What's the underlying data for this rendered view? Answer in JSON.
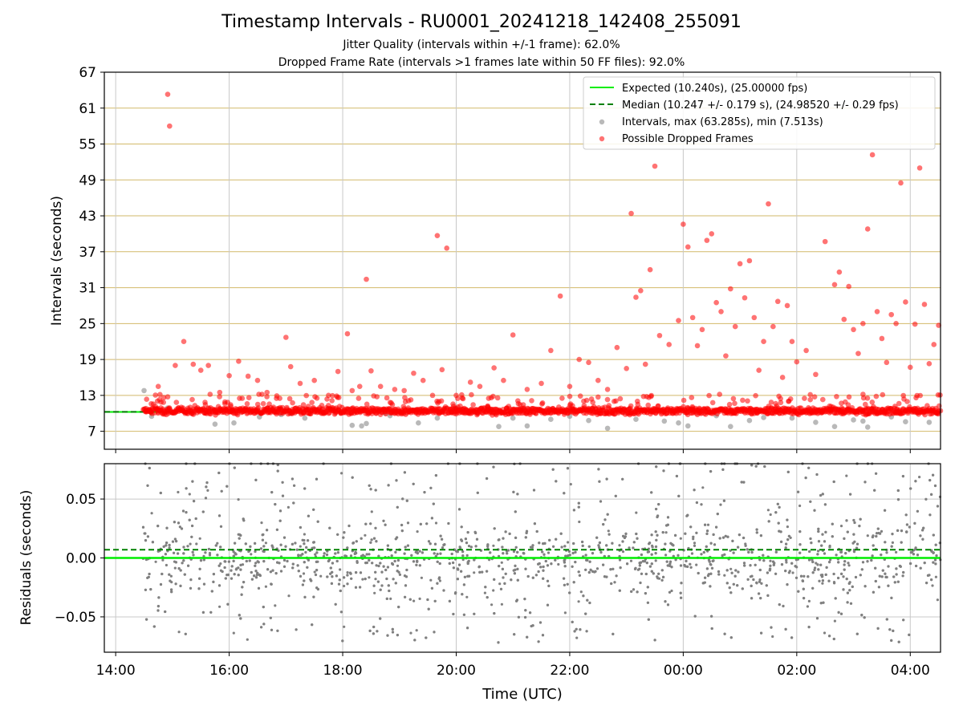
{
  "header": {
    "title": "Timestamp Intervals - RU0001_20241218_142408_255091",
    "subtitle_1": "Jitter Quality (intervals within +/-1 frame): 62.0%",
    "subtitle_2": "Dropped Frame Rate (intervals >1 frames late within 50 FF files): 92.0%"
  },
  "colors": {
    "expected": "#00ee00",
    "median": "#008000",
    "intervals": "#808080",
    "dropped": "#ff0000",
    "hgrid_top": "#d2b96a",
    "grid": "#c8c8c8"
  },
  "chart_data": [
    {
      "type": "scatter",
      "ylabel": "Intervals (seconds)",
      "ylim": [
        4,
        67
      ],
      "xlim": [
        "13:48",
        "04:32"
      ],
      "yticks": [
        "7",
        "13",
        "19",
        "25",
        "31",
        "37",
        "43",
        "49",
        "55",
        "61",
        "67"
      ],
      "grid": true,
      "legend_position": "top-right",
      "legend": [
        "Expected (10.240s), (25.00000 fps)",
        "Median (10.247 +/- 0.179 s), (24.98520 +/- 0.29 fps)",
        "Intervals, max (63.285s), min (7.513s)",
        "Possible Dropped Frames"
      ],
      "expected_interval": 10.24,
      "median_interval": 10.247,
      "time_range_points": [
        "14:29",
        "04:32"
      ],
      "typical_interval_band": [
        9.5,
        11.5
      ],
      "series": [
        {
          "name": "Intervals, max (63.285s), min (7.513s)",
          "points": [
            [
              "14:30",
              13.8
            ],
            [
              "14:38",
              9.5
            ],
            [
              "14:55",
              10.9
            ],
            [
              "15:40",
              10.6
            ],
            [
              "15:45",
              8.2
            ],
            [
              "16:05",
              8.4
            ],
            [
              "16:32",
              9.4
            ],
            [
              "16:55",
              9.8
            ],
            [
              "17:05",
              10.0
            ],
            [
              "17:20",
              9.2
            ],
            [
              "18:10",
              8.0
            ],
            [
              "18:20",
              7.9
            ],
            [
              "18:25",
              8.3
            ],
            [
              "18:45",
              10.0
            ],
            [
              "18:50",
              9.6
            ],
            [
              "19:20",
              8.4
            ],
            [
              "19:40",
              9.2
            ],
            [
              "20:00",
              10.8
            ],
            [
              "20:45",
              7.8
            ],
            [
              "21:00",
              9.2
            ],
            [
              "21:15",
              7.9
            ],
            [
              "21:40",
              9.0
            ],
            [
              "22:00",
              9.5
            ],
            [
              "22:20",
              8.8
            ],
            [
              "22:40",
              7.5
            ],
            [
              "23:10",
              9.0
            ],
            [
              "23:40",
              8.7
            ],
            [
              "23:55",
              8.4
            ],
            [
              "00:05",
              7.9
            ],
            [
              "00:35",
              9.6
            ],
            [
              "00:50",
              7.8
            ],
            [
              "01:10",
              8.8
            ],
            [
              "01:25",
              9.3
            ],
            [
              "01:55",
              9.2
            ],
            [
              "02:20",
              8.5
            ],
            [
              "02:40",
              7.8
            ],
            [
              "03:00",
              8.9
            ],
            [
              "03:10",
              8.7
            ],
            [
              "03:15",
              7.7
            ],
            [
              "03:40",
              9.4
            ],
            [
              "03:55",
              8.6
            ],
            [
              "04:20",
              8.5
            ]
          ]
        },
        {
          "name": "Possible Dropped Frames",
          "points": [
            [
              "14:45",
              14.5
            ],
            [
              "14:55",
              63.3
            ],
            [
              "14:57",
              58.0
            ],
            [
              "15:03",
              18.0
            ],
            [
              "15:12",
              22.0
            ],
            [
              "15:22",
              18.2
            ],
            [
              "15:30",
              17.2
            ],
            [
              "15:38",
              18.0
            ],
            [
              "15:50",
              13.5
            ],
            [
              "16:00",
              16.3
            ],
            [
              "16:10",
              18.7
            ],
            [
              "16:20",
              16.2
            ],
            [
              "16:30",
              15.5
            ],
            [
              "16:40",
              13.5
            ],
            [
              "16:50",
              12.5
            ],
            [
              "17:00",
              22.7
            ],
            [
              "17:05",
              17.8
            ],
            [
              "17:15",
              15.0
            ],
            [
              "17:30",
              15.5
            ],
            [
              "17:45",
              13.0
            ],
            [
              "17:55",
              17.0
            ],
            [
              "18:05",
              23.3
            ],
            [
              "18:10",
              13.8
            ],
            [
              "18:18",
              14.5
            ],
            [
              "18:25",
              32.4
            ],
            [
              "18:30",
              17.1
            ],
            [
              "18:40",
              14.5
            ],
            [
              "18:55",
              14.0
            ],
            [
              "19:05",
              13.8
            ],
            [
              "19:15",
              16.7
            ],
            [
              "19:25",
              15.5
            ],
            [
              "19:35",
              13.0
            ],
            [
              "19:40",
              39.7
            ],
            [
              "19:45",
              17.3
            ],
            [
              "19:50",
              37.6
            ],
            [
              "20:00",
              13.0
            ],
            [
              "20:15",
              15.2
            ],
            [
              "20:25",
              14.5
            ],
            [
              "20:40",
              17.6
            ],
            [
              "20:50",
              15.5
            ],
            [
              "21:00",
              23.1
            ],
            [
              "21:15",
              14.0
            ],
            [
              "21:30",
              15.0
            ],
            [
              "21:40",
              20.5
            ],
            [
              "21:50",
              29.6
            ],
            [
              "22:00",
              14.5
            ],
            [
              "22:10",
              19.0
            ],
            [
              "22:20",
              18.5
            ],
            [
              "22:30",
              15.5
            ],
            [
              "22:40",
              14.0
            ],
            [
              "22:50",
              21.0
            ],
            [
              "23:00",
              17.5
            ],
            [
              "23:05",
              43.4
            ],
            [
              "23:10",
              29.4
            ],
            [
              "23:15",
              30.5
            ],
            [
              "23:20",
              18.2
            ],
            [
              "23:25",
              34.0
            ],
            [
              "23:30",
              51.3
            ],
            [
              "23:35",
              23.0
            ],
            [
              "23:45",
              21.5
            ],
            [
              "23:55",
              25.5
            ],
            [
              "00:00",
              41.6
            ],
            [
              "00:05",
              37.8
            ],
            [
              "00:10",
              26.0
            ],
            [
              "00:15",
              21.3
            ],
            [
              "00:20",
              24.0
            ],
            [
              "00:25",
              38.9
            ],
            [
              "00:30",
              40.0
            ],
            [
              "00:35",
              28.5
            ],
            [
              "00:40",
              27.0
            ],
            [
              "00:45",
              19.6
            ],
            [
              "00:50",
              30.8
            ],
            [
              "00:55",
              24.5
            ],
            [
              "01:00",
              35.0
            ],
            [
              "01:05",
              29.3
            ],
            [
              "01:10",
              35.5
            ],
            [
              "01:15",
              26.0
            ],
            [
              "01:20",
              17.2
            ],
            [
              "01:25",
              22.0
            ],
            [
              "01:30",
              45.0
            ],
            [
              "01:35",
              24.5
            ],
            [
              "01:40",
              28.7
            ],
            [
              "01:45",
              16.0
            ],
            [
              "01:50",
              28.0
            ],
            [
              "01:55",
              22.0
            ],
            [
              "02:00",
              18.6
            ],
            [
              "02:10",
              20.5
            ],
            [
              "02:20",
              16.5
            ],
            [
              "02:30",
              38.7
            ],
            [
              "02:40",
              31.5
            ],
            [
              "02:45",
              33.6
            ],
            [
              "02:50",
              25.7
            ],
            [
              "02:55",
              31.2
            ],
            [
              "03:00",
              24.0
            ],
            [
              "03:05",
              20.0
            ],
            [
              "03:10",
              25.0
            ],
            [
              "03:15",
              40.8
            ],
            [
              "03:20",
              53.2
            ],
            [
              "03:25",
              27.0
            ],
            [
              "03:30",
              22.5
            ],
            [
              "03:35",
              18.5
            ],
            [
              "03:40",
              26.5
            ],
            [
              "03:45",
              25.0
            ],
            [
              "03:50",
              48.5
            ],
            [
              "03:55",
              28.6
            ],
            [
              "04:00",
              17.7
            ],
            [
              "04:05",
              24.9
            ],
            [
              "04:10",
              51.0
            ],
            [
              "04:15",
              28.2
            ],
            [
              "04:20",
              18.3
            ],
            [
              "04:25",
              21.5
            ],
            [
              "04:30",
              24.7
            ]
          ]
        }
      ]
    },
    {
      "type": "scatter",
      "ylabel": "Residuals (seconds)",
      "xlabel": "Time (UTC)",
      "ylim": [
        -0.08,
        0.08
      ],
      "xlim": [
        "13:48",
        "04:32"
      ],
      "yticks": [
        "0.05",
        "0.00",
        "−0.05"
      ],
      "xticks": [
        "14:00",
        "16:00",
        "18:00",
        "20:00",
        "22:00",
        "00:00",
        "02:00",
        "04:00"
      ],
      "grid": true,
      "expected_residual": 0.0,
      "median_residual": 0.007,
      "series": [
        {
          "name": "Residuals",
          "typical_spread": 0.025,
          "value_range": [
            -0.08,
            0.08
          ]
        }
      ]
    }
  ]
}
